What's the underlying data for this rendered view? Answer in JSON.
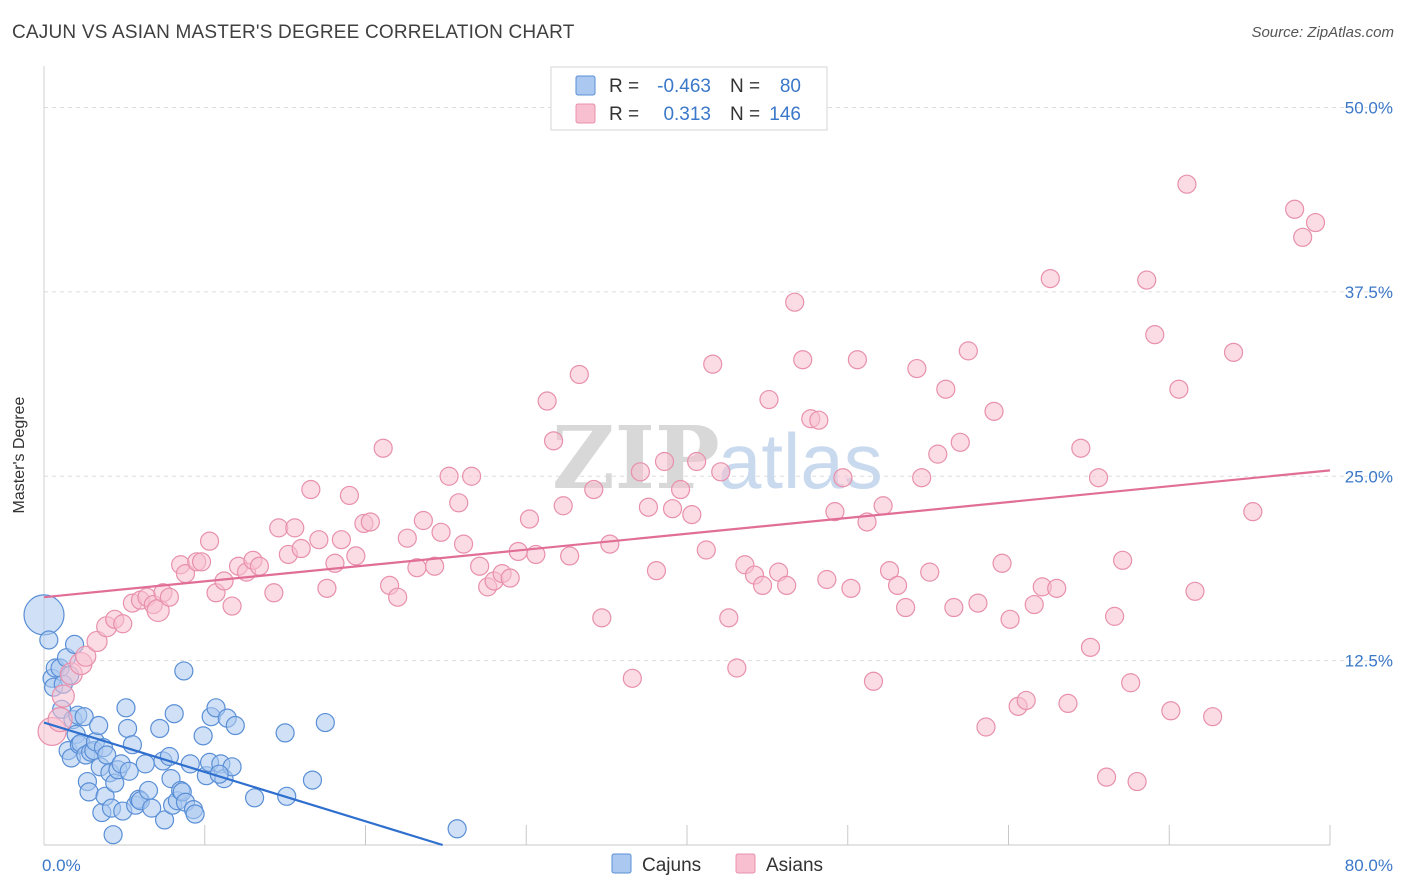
{
  "title": "CAJUN VS ASIAN MASTER'S DEGREE CORRELATION CHART",
  "source": "Source: ZipAtlas.com",
  "watermark": {
    "zip": "ZIP",
    "atlas": "atlas"
  },
  "legend": {
    "rows": [
      {
        "r_label": "R =",
        "r_value": "-0.463",
        "n_label": "N =",
        "n_value": "80"
      },
      {
        "r_label": "R =",
        "r_value": "0.313",
        "n_label": "N =",
        "n_value": "146"
      }
    ]
  },
  "colors": {
    "cajuns_fill": "#aac8f0",
    "cajuns_stroke": "#5a8fd6",
    "cajuns_line": "#2f6fce",
    "asians_fill": "#f7bfd0",
    "asians_stroke": "#e890ac",
    "asians_line": "#e06e96",
    "tick": "#3b78c8",
    "grid": "#dddddd"
  },
  "chart_data": {
    "type": "scatter",
    "title": "CAJUN VS ASIAN MASTER'S DEGREE CORRELATION CHART",
    "xlabel": "",
    "ylabel": "Master's Degree",
    "xlim": [
      0,
      80
    ],
    "ylim": [
      0,
      52
    ],
    "x_ticks": [
      {
        "value": 0,
        "label": "0.0%"
      },
      {
        "value": 80,
        "label": "80.0%"
      }
    ],
    "y_ticks": [
      {
        "value": 12.5,
        "label": "12.5%"
      },
      {
        "value": 25,
        "label": "25.0%"
      },
      {
        "value": 37.5,
        "label": "37.5%"
      },
      {
        "value": 50,
        "label": "50.0%"
      }
    ],
    "grid": true,
    "legend_position": "top-center",
    "series": [
      {
        "name": "Cajuns",
        "r": -0.463,
        "n": 80,
        "trend": {
          "x": [
            0,
            24.8
          ],
          "y": [
            8.3,
            0
          ]
        },
        "points": [
          [
            0.0,
            15.6,
            20
          ],
          [
            0.3,
            13.9,
            9
          ],
          [
            0.5,
            11.3,
            9
          ],
          [
            0.6,
            10.7,
            9
          ],
          [
            0.7,
            12.0,
            9
          ],
          [
            1.0,
            12.0,
            9
          ],
          [
            1.1,
            9.2,
            9
          ],
          [
            1.2,
            10.9,
            9
          ],
          [
            1.4,
            12.7,
            9
          ],
          [
            1.5,
            6.4,
            9
          ],
          [
            1.6,
            11.5,
            9
          ],
          [
            1.7,
            5.9,
            9
          ],
          [
            1.8,
            8.5,
            9
          ],
          [
            1.9,
            13.6,
            9
          ],
          [
            2.0,
            7.5,
            9
          ],
          [
            2.1,
            8.8,
            9
          ],
          [
            2.2,
            6.8,
            9
          ],
          [
            2.3,
            6.9,
            9
          ],
          [
            2.5,
            8.7,
            9
          ],
          [
            2.6,
            6.1,
            9
          ],
          [
            2.7,
            4.3,
            9
          ],
          [
            2.8,
            3.6,
            9
          ],
          [
            2.9,
            6.3,
            9
          ],
          [
            3.1,
            6.4,
            9
          ],
          [
            3.2,
            7.0,
            9
          ],
          [
            3.4,
            8.1,
            9
          ],
          [
            3.5,
            5.3,
            9
          ],
          [
            3.6,
            2.2,
            9
          ],
          [
            3.7,
            6.6,
            9
          ],
          [
            3.8,
            3.3,
            9
          ],
          [
            3.9,
            6.1,
            9
          ],
          [
            4.1,
            4.9,
            9
          ],
          [
            4.2,
            2.5,
            9
          ],
          [
            4.3,
            0.7,
            9
          ],
          [
            4.4,
            4.2,
            9
          ],
          [
            4.6,
            5.1,
            9
          ],
          [
            4.8,
            5.5,
            9
          ],
          [
            4.9,
            2.3,
            9
          ],
          [
            5.1,
            9.3,
            9
          ],
          [
            5.2,
            7.9,
            9
          ],
          [
            5.3,
            5.0,
            9
          ],
          [
            5.5,
            6.8,
            9
          ],
          [
            5.7,
            2.7,
            9
          ],
          [
            5.9,
            3.1,
            9
          ],
          [
            6.0,
            3.0,
            9
          ],
          [
            6.3,
            5.5,
            9
          ],
          [
            6.5,
            3.7,
            9
          ],
          [
            6.7,
            2.5,
            9
          ],
          [
            7.2,
            7.9,
            9
          ],
          [
            7.4,
            5.7,
            9
          ],
          [
            7.5,
            1.7,
            9
          ],
          [
            7.8,
            6.0,
            9
          ],
          [
            7.9,
            4.5,
            9
          ],
          [
            8.0,
            2.7,
            9
          ],
          [
            8.1,
            8.9,
            9
          ],
          [
            8.3,
            3.0,
            9
          ],
          [
            8.5,
            3.7,
            9
          ],
          [
            8.6,
            3.6,
            9
          ],
          [
            8.7,
            11.8,
            9
          ],
          [
            8.8,
            2.9,
            9
          ],
          [
            9.1,
            5.5,
            9
          ],
          [
            9.3,
            2.4,
            9
          ],
          [
            9.4,
            2.1,
            9
          ],
          [
            9.9,
            7.4,
            9
          ],
          [
            10.1,
            4.7,
            9
          ],
          [
            10.3,
            5.6,
            9
          ],
          [
            10.4,
            8.7,
            9
          ],
          [
            10.7,
            9.3,
            9
          ],
          [
            11.0,
            5.5,
            9
          ],
          [
            11.2,
            4.5,
            9
          ],
          [
            11.4,
            8.6,
            9
          ],
          [
            11.7,
            5.3,
            9
          ],
          [
            11.9,
            8.1,
            9
          ],
          [
            13.1,
            3.2,
            9
          ],
          [
            15.0,
            7.6,
            9
          ],
          [
            15.1,
            3.3,
            9
          ],
          [
            16.7,
            4.4,
            9
          ],
          [
            17.5,
            8.3,
            9
          ],
          [
            25.7,
            1.1,
            9
          ],
          [
            10.9,
            4.8,
            9
          ]
        ]
      },
      {
        "name": "Asians",
        "r": 0.313,
        "n": 146,
        "trend": {
          "x": [
            0,
            80
          ],
          "y": [
            16.8,
            25.4
          ]
        },
        "points": [
          [
            0.5,
            7.7,
            14
          ],
          [
            1.0,
            8.5,
            12
          ],
          [
            1.2,
            10.1,
            11
          ],
          [
            1.7,
            11.6,
            11
          ],
          [
            2.3,
            12.3,
            11
          ],
          [
            2.6,
            12.8,
            10
          ],
          [
            3.3,
            13.8,
            10
          ],
          [
            3.9,
            14.8,
            10
          ],
          [
            4.4,
            15.3,
            9
          ],
          [
            4.9,
            15.0,
            9
          ],
          [
            5.5,
            16.4,
            9
          ],
          [
            6.0,
            16.6,
            9
          ],
          [
            6.4,
            16.8,
            9
          ],
          [
            6.8,
            16.3,
            9
          ],
          [
            7.1,
            15.9,
            11
          ],
          [
            7.4,
            17.1,
            9
          ],
          [
            7.8,
            16.8,
            9
          ],
          [
            8.5,
            19.0,
            9
          ],
          [
            8.8,
            18.4,
            9
          ],
          [
            9.5,
            19.2,
            9
          ],
          [
            9.8,
            19.2,
            9
          ],
          [
            10.3,
            20.6,
            9
          ],
          [
            10.7,
            17.1,
            9
          ],
          [
            11.2,
            17.9,
            9
          ],
          [
            11.7,
            16.2,
            9
          ],
          [
            12.1,
            18.9,
            9
          ],
          [
            12.6,
            18.5,
            9
          ],
          [
            13.0,
            19.3,
            9
          ],
          [
            13.4,
            18.9,
            9
          ],
          [
            14.3,
            17.1,
            9
          ],
          [
            14.6,
            21.5,
            9
          ],
          [
            15.2,
            19.7,
            9
          ],
          [
            15.6,
            21.5,
            9
          ],
          [
            16.0,
            20.1,
            9
          ],
          [
            16.6,
            24.1,
            9
          ],
          [
            17.1,
            20.7,
            9
          ],
          [
            17.6,
            17.4,
            9
          ],
          [
            18.1,
            19.1,
            9
          ],
          [
            18.5,
            20.7,
            9
          ],
          [
            19.0,
            23.7,
            9
          ],
          [
            19.4,
            19.6,
            9
          ],
          [
            19.9,
            21.8,
            9
          ],
          [
            20.3,
            21.9,
            9
          ],
          [
            21.1,
            26.9,
            9
          ],
          [
            21.5,
            17.6,
            9
          ],
          [
            22.0,
            16.8,
            9
          ],
          [
            22.6,
            20.8,
            9
          ],
          [
            23.2,
            18.8,
            9
          ],
          [
            23.6,
            22.0,
            9
          ],
          [
            24.3,
            18.9,
            9
          ],
          [
            24.7,
            21.2,
            9
          ],
          [
            25.2,
            25.0,
            9
          ],
          [
            25.8,
            23.2,
            9
          ],
          [
            26.1,
            20.4,
            9
          ],
          [
            26.6,
            25.0,
            9
          ],
          [
            27.1,
            18.9,
            9
          ],
          [
            27.6,
            17.5,
            9
          ],
          [
            28.0,
            17.9,
            9
          ],
          [
            28.5,
            18.4,
            9
          ],
          [
            29.0,
            18.1,
            9
          ],
          [
            29.5,
            19.9,
            9
          ],
          [
            30.2,
            22.1,
            9
          ],
          [
            30.6,
            19.7,
            9
          ],
          [
            31.3,
            30.1,
            9
          ],
          [
            31.7,
            27.4,
            9
          ],
          [
            32.3,
            23.0,
            9
          ],
          [
            32.7,
            19.6,
            9
          ],
          [
            33.3,
            31.9,
            9
          ],
          [
            34.2,
            24.1,
            9
          ],
          [
            34.7,
            15.4,
            9
          ],
          [
            35.2,
            20.4,
            9
          ],
          [
            36.6,
            11.3,
            9
          ],
          [
            37.1,
            25.3,
            9
          ],
          [
            37.6,
            22.9,
            9
          ],
          [
            38.1,
            18.6,
            9
          ],
          [
            38.6,
            26.0,
            9
          ],
          [
            39.1,
            22.8,
            9
          ],
          [
            39.6,
            24.1,
            9
          ],
          [
            40.3,
            22.4,
            9
          ],
          [
            40.6,
            26.0,
            9
          ],
          [
            41.2,
            20.0,
            9
          ],
          [
            41.6,
            32.6,
            9
          ],
          [
            42.1,
            25.3,
            9
          ],
          [
            42.6,
            15.4,
            9
          ],
          [
            43.1,
            12.0,
            9
          ],
          [
            43.6,
            19.0,
            9
          ],
          [
            44.2,
            18.3,
            9
          ],
          [
            44.7,
            17.6,
            9
          ],
          [
            45.1,
            30.2,
            9
          ],
          [
            45.7,
            18.5,
            9
          ],
          [
            46.2,
            17.6,
            9
          ],
          [
            46.7,
            36.8,
            9
          ],
          [
            47.2,
            32.9,
            9
          ],
          [
            47.7,
            28.9,
            9
          ],
          [
            48.2,
            28.8,
            9
          ],
          [
            48.7,
            18.0,
            9
          ],
          [
            49.2,
            22.6,
            9
          ],
          [
            49.7,
            24.9,
            9
          ],
          [
            50.2,
            17.4,
            9
          ],
          [
            50.6,
            32.9,
            9
          ],
          [
            51.2,
            21.9,
            9
          ],
          [
            51.6,
            11.1,
            9
          ],
          [
            52.2,
            23.0,
            9
          ],
          [
            52.6,
            18.6,
            9
          ],
          [
            53.1,
            17.6,
            9
          ],
          [
            53.6,
            16.1,
            9
          ],
          [
            54.3,
            32.3,
            9
          ],
          [
            54.6,
            24.9,
            9
          ],
          [
            55.1,
            18.5,
            9
          ],
          [
            55.6,
            26.5,
            9
          ],
          [
            56.1,
            30.9,
            9
          ],
          [
            56.6,
            16.1,
            9
          ],
          [
            57.0,
            27.3,
            9
          ],
          [
            57.5,
            33.5,
            9
          ],
          [
            58.1,
            16.4,
            9
          ],
          [
            58.6,
            8.0,
            9
          ],
          [
            59.1,
            29.4,
            9
          ],
          [
            59.6,
            19.1,
            9
          ],
          [
            60.1,
            15.3,
            9
          ],
          [
            60.6,
            9.4,
            9
          ],
          [
            61.1,
            9.8,
            9
          ],
          [
            61.6,
            16.3,
            9
          ],
          [
            62.1,
            17.5,
            9
          ],
          [
            62.6,
            38.4,
            9
          ],
          [
            63.0,
            17.4,
            9
          ],
          [
            63.7,
            9.6,
            9
          ],
          [
            64.5,
            26.9,
            9
          ],
          [
            65.1,
            13.4,
            9
          ],
          [
            65.6,
            24.9,
            9
          ],
          [
            66.1,
            4.6,
            9
          ],
          [
            66.6,
            15.5,
            9
          ],
          [
            67.1,
            19.3,
            9
          ],
          [
            67.6,
            11.0,
            9
          ],
          [
            68.0,
            4.3,
            9
          ],
          [
            68.6,
            38.3,
            9
          ],
          [
            69.1,
            34.6,
            9
          ],
          [
            70.1,
            9.1,
            9
          ],
          [
            70.6,
            30.9,
            9
          ],
          [
            71.1,
            44.8,
            9
          ],
          [
            71.6,
            17.2,
            9
          ],
          [
            72.7,
            8.7,
            9
          ],
          [
            74.0,
            33.4,
            9
          ],
          [
            75.2,
            22.6,
            9
          ],
          [
            77.8,
            43.1,
            9
          ],
          [
            78.3,
            41.2,
            9
          ],
          [
            79.1,
            42.2,
            9
          ]
        ]
      }
    ]
  }
}
